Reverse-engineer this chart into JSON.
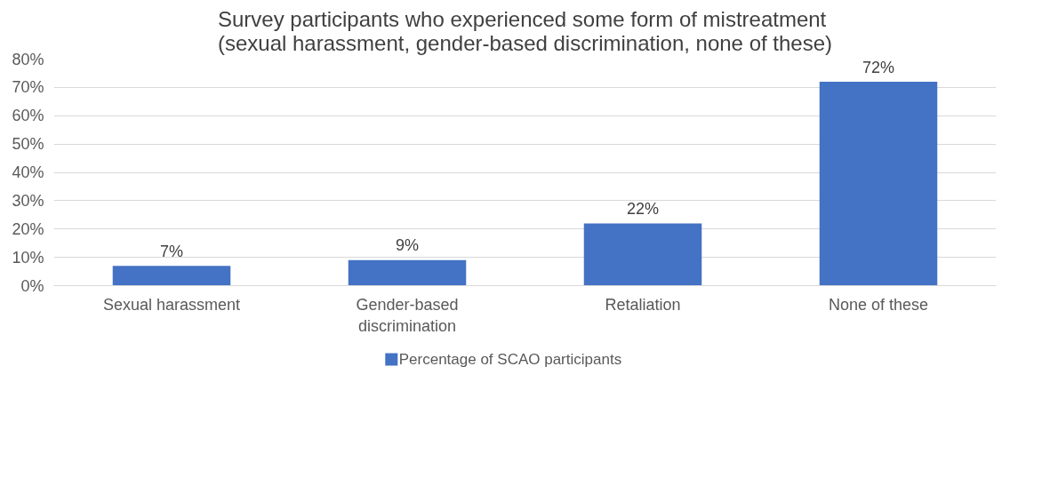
{
  "chart_data": {
    "type": "bar",
    "title": "Survey participants who experienced some form of mistreatment\n(sexual harassment, gender-based discrimination, none of these)",
    "categories": [
      "Sexual harassment",
      "Gender-based discrimination",
      "Retaliation",
      "None of these"
    ],
    "series": [
      {
        "name": "Percentage of SCAO participants",
        "color": "#4472c4",
        "values": [
          7,
          9,
          22,
          72
        ]
      }
    ],
    "value_labels": [
      "7%",
      "9%",
      "22%",
      "72%"
    ],
    "ylim": [
      0,
      80
    ],
    "yticks": [
      {
        "value": 0,
        "label": "0%"
      },
      {
        "value": 10,
        "label": "10%"
      },
      {
        "value": 20,
        "label": "20%"
      },
      {
        "value": 30,
        "label": "30%"
      },
      {
        "value": 40,
        "label": "40%"
      },
      {
        "value": 50,
        "label": "50%"
      },
      {
        "value": 60,
        "label": "60%"
      },
      {
        "value": 70,
        "label": "70%"
      },
      {
        "value": 80,
        "label": "80%"
      }
    ],
    "grid": "y",
    "legend": "bottom"
  }
}
